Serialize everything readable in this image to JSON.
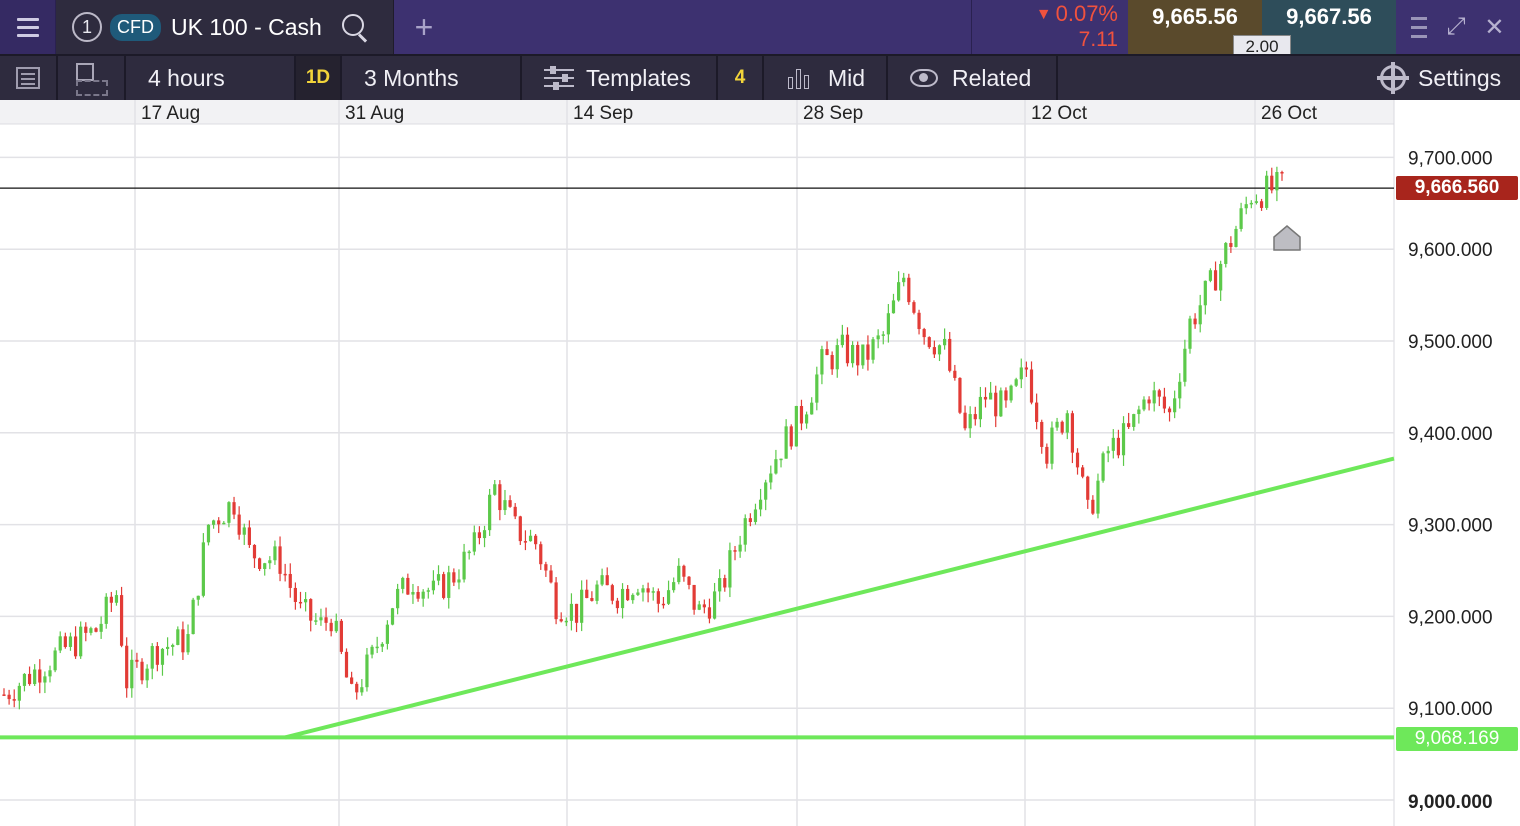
{
  "header": {
    "instrument_number": "1",
    "instrument_type": "CFD",
    "instrument_name": "UK 100 - Cash",
    "add_tab_label": "+",
    "change_percent": "0.07%",
    "change_absolute": "7.11",
    "bid": "9,665.56",
    "ask": "9,667.56",
    "spread": "2.00",
    "expand_label": "⤢",
    "close_label": "✕",
    "down_color": "#f0523e"
  },
  "toolbar": {
    "interval": "4 hours",
    "interval_badge": "1D",
    "range": "3 Months",
    "templates": "Templates",
    "indicator_count": "4",
    "price_type": "Mid",
    "related": "Related",
    "settings": "Settings"
  },
  "chart_data": {
    "type": "candlestick",
    "timeframe": "4 hours",
    "x_labels": [
      "17 Aug",
      "31 Aug",
      "14 Sep",
      "28 Sep",
      "12 Oct",
      "26 Oct"
    ],
    "y_ticks": [
      "9,700.000",
      "9,600.000",
      "9,500.000",
      "9,400.000",
      "9,300.000",
      "9,200.000",
      "9,100.000",
      "9,000.000"
    ],
    "ylim": [
      8990,
      9725
    ],
    "grid": true,
    "current_price": "9,666.560",
    "support_level_label": "9,068.169",
    "support_level": 9068.169,
    "trendline": {
      "start": [
        "24 Aug",
        9068.169
      ],
      "end": [
        "30 Oct",
        9372
      ]
    },
    "up_color": "#5cc94a",
    "down_color": "#e23b36",
    "trendline_color": "#6ee85a",
    "price_path": [
      [
        0,
        9115
      ],
      [
        6,
        9140
      ],
      [
        12,
        9165
      ],
      [
        18,
        9185
      ],
      [
        22,
        9225
      ],
      [
        24,
        9130
      ],
      [
        30,
        9165
      ],
      [
        36,
        9175
      ],
      [
        40,
        9300
      ],
      [
        45,
        9325
      ],
      [
        48,
        9270
      ],
      [
        54,
        9260
      ],
      [
        58,
        9205
      ],
      [
        62,
        9190
      ],
      [
        64,
        9200
      ],
      [
        68,
        9110
      ],
      [
        72,
        9155
      ],
      [
        76,
        9215
      ],
      [
        80,
        9240
      ],
      [
        84,
        9225
      ],
      [
        88,
        9245
      ],
      [
        92,
        9275
      ],
      [
        96,
        9340
      ],
      [
        100,
        9295
      ],
      [
        104,
        9280
      ],
      [
        108,
        9215
      ],
      [
        112,
        9205
      ],
      [
        116,
        9230
      ],
      [
        120,
        9225
      ],
      [
        124,
        9240
      ],
      [
        128,
        9215
      ],
      [
        132,
        9245
      ],
      [
        136,
        9205
      ],
      [
        140,
        9225
      ],
      [
        144,
        9290
      ],
      [
        148,
        9345
      ],
      [
        152,
        9385
      ],
      [
        156,
        9420
      ],
      [
        160,
        9475
      ],
      [
        164,
        9490
      ],
      [
        168,
        9480
      ],
      [
        172,
        9505
      ],
      [
        176,
        9570
      ],
      [
        180,
        9510
      ],
      [
        184,
        9490
      ],
      [
        188,
        9400
      ],
      [
        192,
        9440
      ],
      [
        196,
        9425
      ],
      [
        200,
        9470
      ],
      [
        204,
        9380
      ],
      [
        208,
        9425
      ],
      [
        212,
        9310
      ],
      [
        216,
        9380
      ],
      [
        220,
        9400
      ],
      [
        224,
        9445
      ],
      [
        228,
        9420
      ],
      [
        232,
        9520
      ],
      [
        236,
        9560
      ],
      [
        240,
        9610
      ],
      [
        244,
        9660
      ],
      [
        246,
        9662
      ],
      [
        250,
        9668
      ]
    ]
  }
}
